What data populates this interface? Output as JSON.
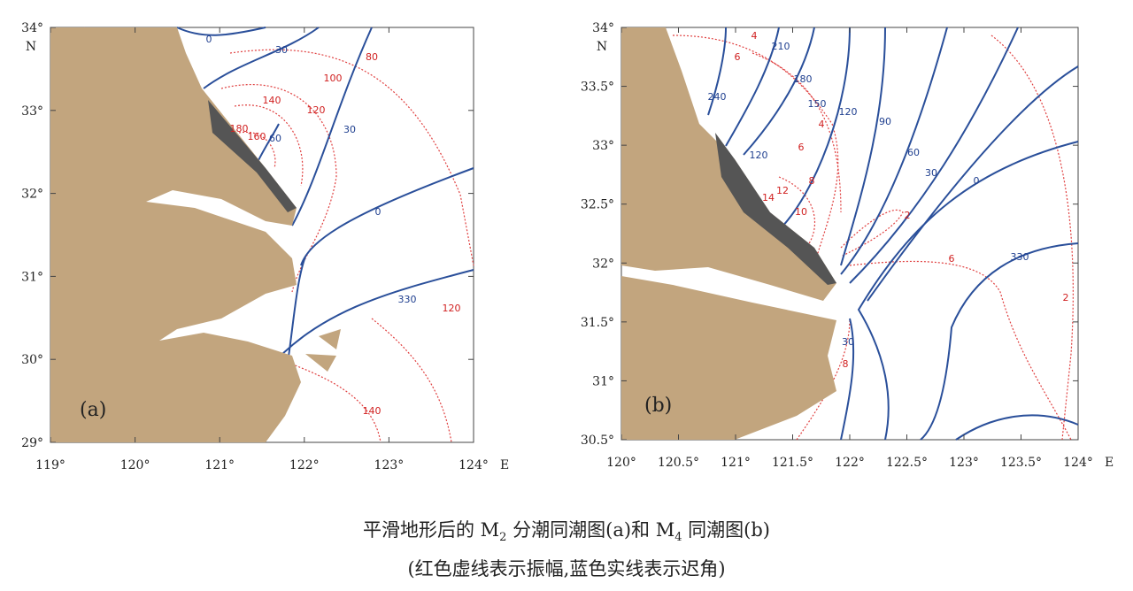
{
  "panels": [
    {
      "label": "(a)",
      "x_ticks": [
        "119°",
        "120°",
        "121°",
        "122°",
        "123°",
        "124°"
      ],
      "x_unit": "E",
      "y_ticks": [
        "29°",
        "30°",
        "31°",
        "32°",
        "33°",
        "34°"
      ],
      "y_unit": "N",
      "phase_labels": [
        "0",
        "30",
        "60",
        "30",
        "0",
        "330"
      ],
      "amplitude_labels": [
        "80",
        "100",
        "140",
        "120",
        "180",
        "160",
        "120",
        "140"
      ]
    },
    {
      "label": "(b)",
      "x_ticks": [
        "120°",
        "120.5°",
        "121°",
        "121.5°",
        "122°",
        "122.5°",
        "123°",
        "123.5°",
        "124°"
      ],
      "x_unit": "E",
      "y_ticks": [
        "30.5°",
        "31°",
        "31.5°",
        "32°",
        "32.5°",
        "33°",
        "33.5°",
        "34°"
      ],
      "y_unit": "N",
      "phase_labels": [
        "210",
        "180",
        "240",
        "150",
        "120",
        "90",
        "60",
        "30",
        "0",
        "120",
        "330",
        "30"
      ],
      "amplitude_labels": [
        "4",
        "6",
        "4",
        "6",
        "8",
        "12",
        "14",
        "10",
        "2",
        "6",
        "2",
        "8"
      ]
    }
  ],
  "caption": {
    "line1": [
      "平滑地形后的 M",
      "2",
      " 分潮同潮图(a)和 M",
      "4",
      " 同潮图(b)"
    ],
    "line2": "(红色虚线表示振幅,蓝色实线表示迟角)"
  }
}
